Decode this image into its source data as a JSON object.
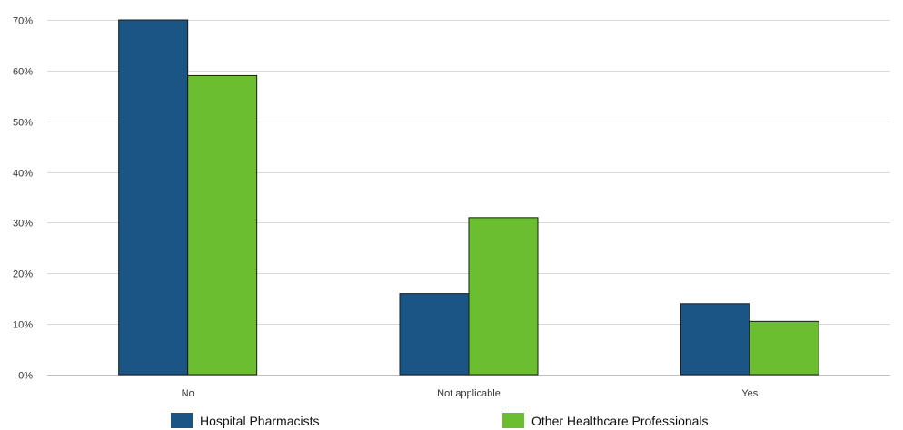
{
  "chart_data": {
    "type": "bar",
    "categories": [
      "No",
      "Not applicable",
      "Yes"
    ],
    "series": [
      {
        "name": "Hospital Pharmacists",
        "values": [
          70,
          16,
          14
        ],
        "color": "#1b5586"
      },
      {
        "name": "Other Healthcare Professionals",
        "values": [
          59,
          31,
          10.5
        ],
        "color": "#6abe2f"
      }
    ],
    "title": "",
    "xlabel": "",
    "ylabel": "",
    "ylim": [
      0,
      70
    ],
    "yticks": [
      "0%",
      "10%",
      "20%",
      "30%",
      "40%",
      "50%",
      "60%",
      "70%"
    ],
    "grid": true,
    "legend_position": "bottom"
  }
}
